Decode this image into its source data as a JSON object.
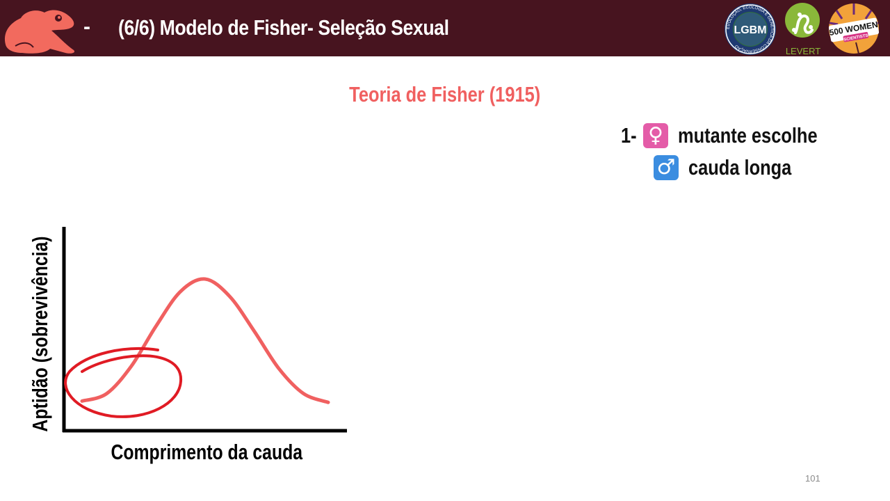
{
  "header": {
    "dash": "-",
    "title": "(6/6) Modelo de Fisher- Seleção Sexual",
    "logos": {
      "lgbm": "LGBM",
      "lgbm_ring_text": "EVOLUÇÃO, ECOLOGIA E GENÉTICA DA CONSERVAÇÃO",
      "levert": "LEVERT",
      "women": "500 WOMEN",
      "women_sub": "SCIENTISTS"
    },
    "colors": {
      "banner": "#47141f",
      "frog": "#f26a5e"
    }
  },
  "slide": {
    "subtitle": "Teoria de Fisher (1915)",
    "point": {
      "lead": "1-",
      "female_symbol": "♀",
      "line1": "mutante escolhe",
      "male_symbol": "♂",
      "line2": "cauda longa"
    },
    "page_number": "101"
  },
  "chart_data": {
    "type": "line",
    "title": "",
    "xlabel": "Comprimento da cauda",
    "ylabel": "Aptidão (sobrevivência)",
    "x_ticks": [],
    "y_ticks": [],
    "grid": false,
    "x": [
      0.0,
      0.1,
      0.2,
      0.3,
      0.4,
      0.5,
      0.6,
      0.7,
      0.8,
      0.9,
      1.0
    ],
    "series": [
      {
        "values": [
          0.02,
          0.08,
          0.3,
          0.62,
          0.9,
          1.0,
          0.86,
          0.58,
          0.28,
          0.08,
          0.01
        ],
        "color": "#f06060"
      }
    ],
    "annotation": {
      "type": "hand-drawn circle",
      "around_x": [
        0.0,
        0.4
      ],
      "color": "#e01b24"
    }
  }
}
